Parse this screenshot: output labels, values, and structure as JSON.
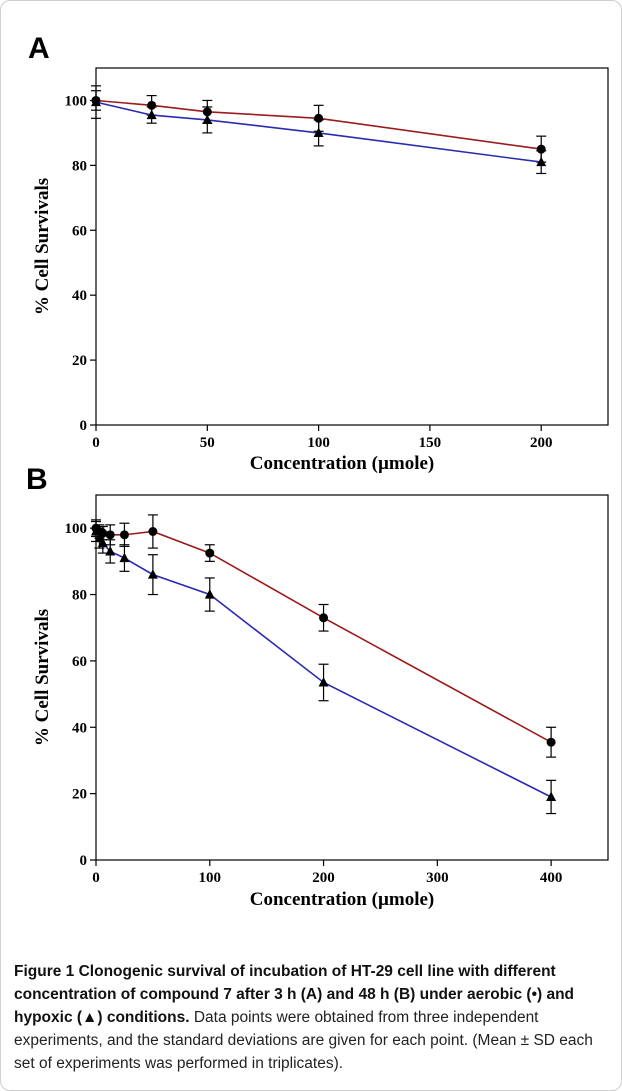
{
  "chart_data": [
    {
      "type": "line",
      "panel_label": "A",
      "xlabel": "Concentration (µmole)",
      "ylabel": "% Cell Survivals",
      "xlim": [
        0,
        230
      ],
      "ylim": [
        0,
        110
      ],
      "x_ticks": [
        0,
        50,
        100,
        150,
        200
      ],
      "y_ticks": [
        0,
        20,
        40,
        60,
        80,
        100
      ],
      "grid": false,
      "series": [
        {
          "marker": "circle",
          "color": "#9b1c1c",
          "points": [
            {
              "x": 0,
              "y": 100,
              "err": 3
            },
            {
              "x": 25,
              "y": 98.5,
              "err": 3
            },
            {
              "x": 50,
              "y": 96.5,
              "err": 3.5
            },
            {
              "x": 100,
              "y": 94.5,
              "err": 4
            },
            {
              "x": 200,
              "y": 85,
              "err": 4
            }
          ]
        },
        {
          "marker": "triangle",
          "color": "#2b2bb0",
          "points": [
            {
              "x": 0,
              "y": 99.5,
              "err": 5
            },
            {
              "x": 25,
              "y": 95.5,
              "err": 2.5
            },
            {
              "x": 50,
              "y": 94,
              "err": 4
            },
            {
              "x": 100,
              "y": 90,
              "err": 4
            },
            {
              "x": 200,
              "y": 81,
              "err": 3.5
            }
          ]
        }
      ]
    },
    {
      "type": "line",
      "panel_label": "B",
      "xlabel": "Concentration (µmole)",
      "ylabel": "% Cell Survivals",
      "xlim": [
        0,
        450
      ],
      "ylim": [
        0,
        110
      ],
      "x_ticks": [
        0,
        100,
        200,
        300,
        400
      ],
      "y_ticks": [
        0,
        20,
        40,
        60,
        80,
        100
      ],
      "grid": false,
      "series": [
        {
          "marker": "circle",
          "color": "#9b1c1c",
          "points": [
            {
              "x": 0,
              "y": 100,
              "err": 2.5
            },
            {
              "x": 3,
              "y": 99,
              "err": 2
            },
            {
              "x": 6,
              "y": 98.5,
              "err": 2
            },
            {
              "x": 12.5,
              "y": 98,
              "err": 3
            },
            {
              "x": 25,
              "y": 98,
              "err": 3.5
            },
            {
              "x": 50,
              "y": 99,
              "err": 5
            },
            {
              "x": 100,
              "y": 92.5,
              "err": 2.5
            },
            {
              "x": 200,
              "y": 73,
              "err": 4
            },
            {
              "x": 400,
              "y": 35.5,
              "err": 4.5
            }
          ]
        },
        {
          "marker": "triangle",
          "color": "#2b2bb0",
          "points": [
            {
              "x": 0,
              "y": 99,
              "err": 3
            },
            {
              "x": 3,
              "y": 97,
              "err": 3
            },
            {
              "x": 6,
              "y": 95.5,
              "err": 3
            },
            {
              "x": 12.5,
              "y": 93,
              "err": 3.5
            },
            {
              "x": 25,
              "y": 91,
              "err": 4
            },
            {
              "x": 50,
              "y": 86,
              "err": 6
            },
            {
              "x": 100,
              "y": 80,
              "err": 5
            },
            {
              "x": 200,
              "y": 53.5,
              "err": 5.5
            },
            {
              "x": 400,
              "y": 19,
              "err": 5
            }
          ]
        }
      ]
    }
  ],
  "caption": {
    "title": "Figure 1 Clonogenic survival of incubation of HT-29 cell line with different concentration of compound 7 after 3 h (A) and 48 h (B) under aerobic (•) and hypoxic (▲) conditions.",
    "body": " Data points were obtained from three independent experiments, and the standard deviations are given for each point. (Mean ± SD each set of experiments was performed in triplicates)."
  }
}
